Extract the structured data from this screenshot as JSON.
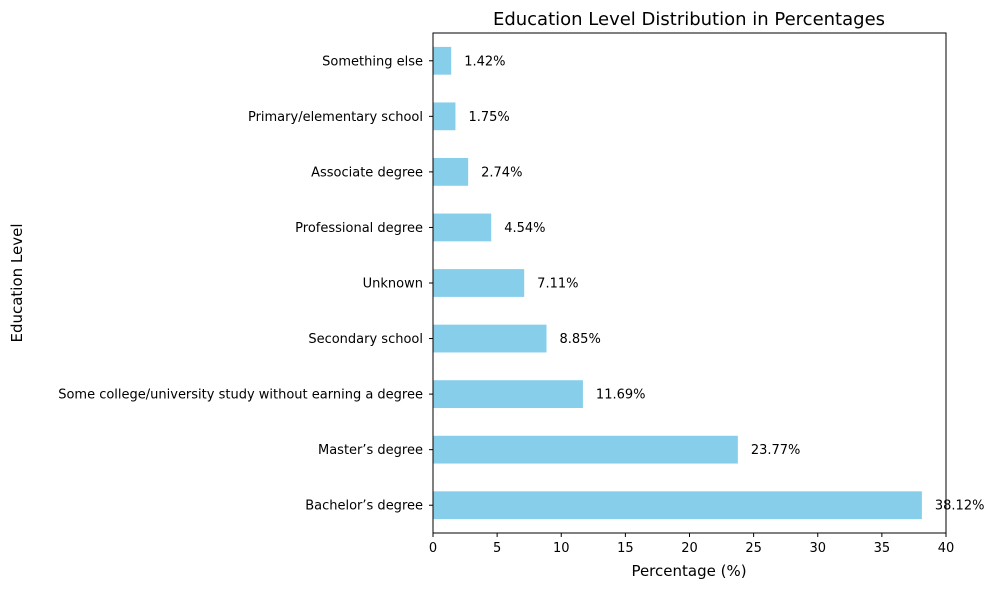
{
  "chart_data": {
    "type": "bar",
    "orientation": "horizontal",
    "title": "Education Level Distribution in Percentages",
    "xlabel": "Percentage (%)",
    "ylabel": "Education Level",
    "xlim": [
      0,
      40
    ],
    "xticks": [
      0,
      5,
      10,
      15,
      20,
      25,
      30,
      35,
      40
    ],
    "grid": false,
    "bar_color": "#87CEEB",
    "categories": [
      "Bachelor’s degree",
      "Master’s degree",
      "Some college/university study without earning a degree",
      "Secondary school",
      "Unknown",
      "Professional degree",
      "Associate degree",
      "Primary/elementary school",
      "Something else"
    ],
    "values": [
      38.12,
      23.77,
      11.69,
      8.85,
      7.11,
      4.54,
      2.74,
      1.75,
      1.42
    ],
    "value_labels": [
      "38.12%",
      "23.77%",
      "11.69%",
      "8.85%",
      "7.11%",
      "4.54%",
      "2.74%",
      "1.75%",
      "1.42%"
    ]
  }
}
